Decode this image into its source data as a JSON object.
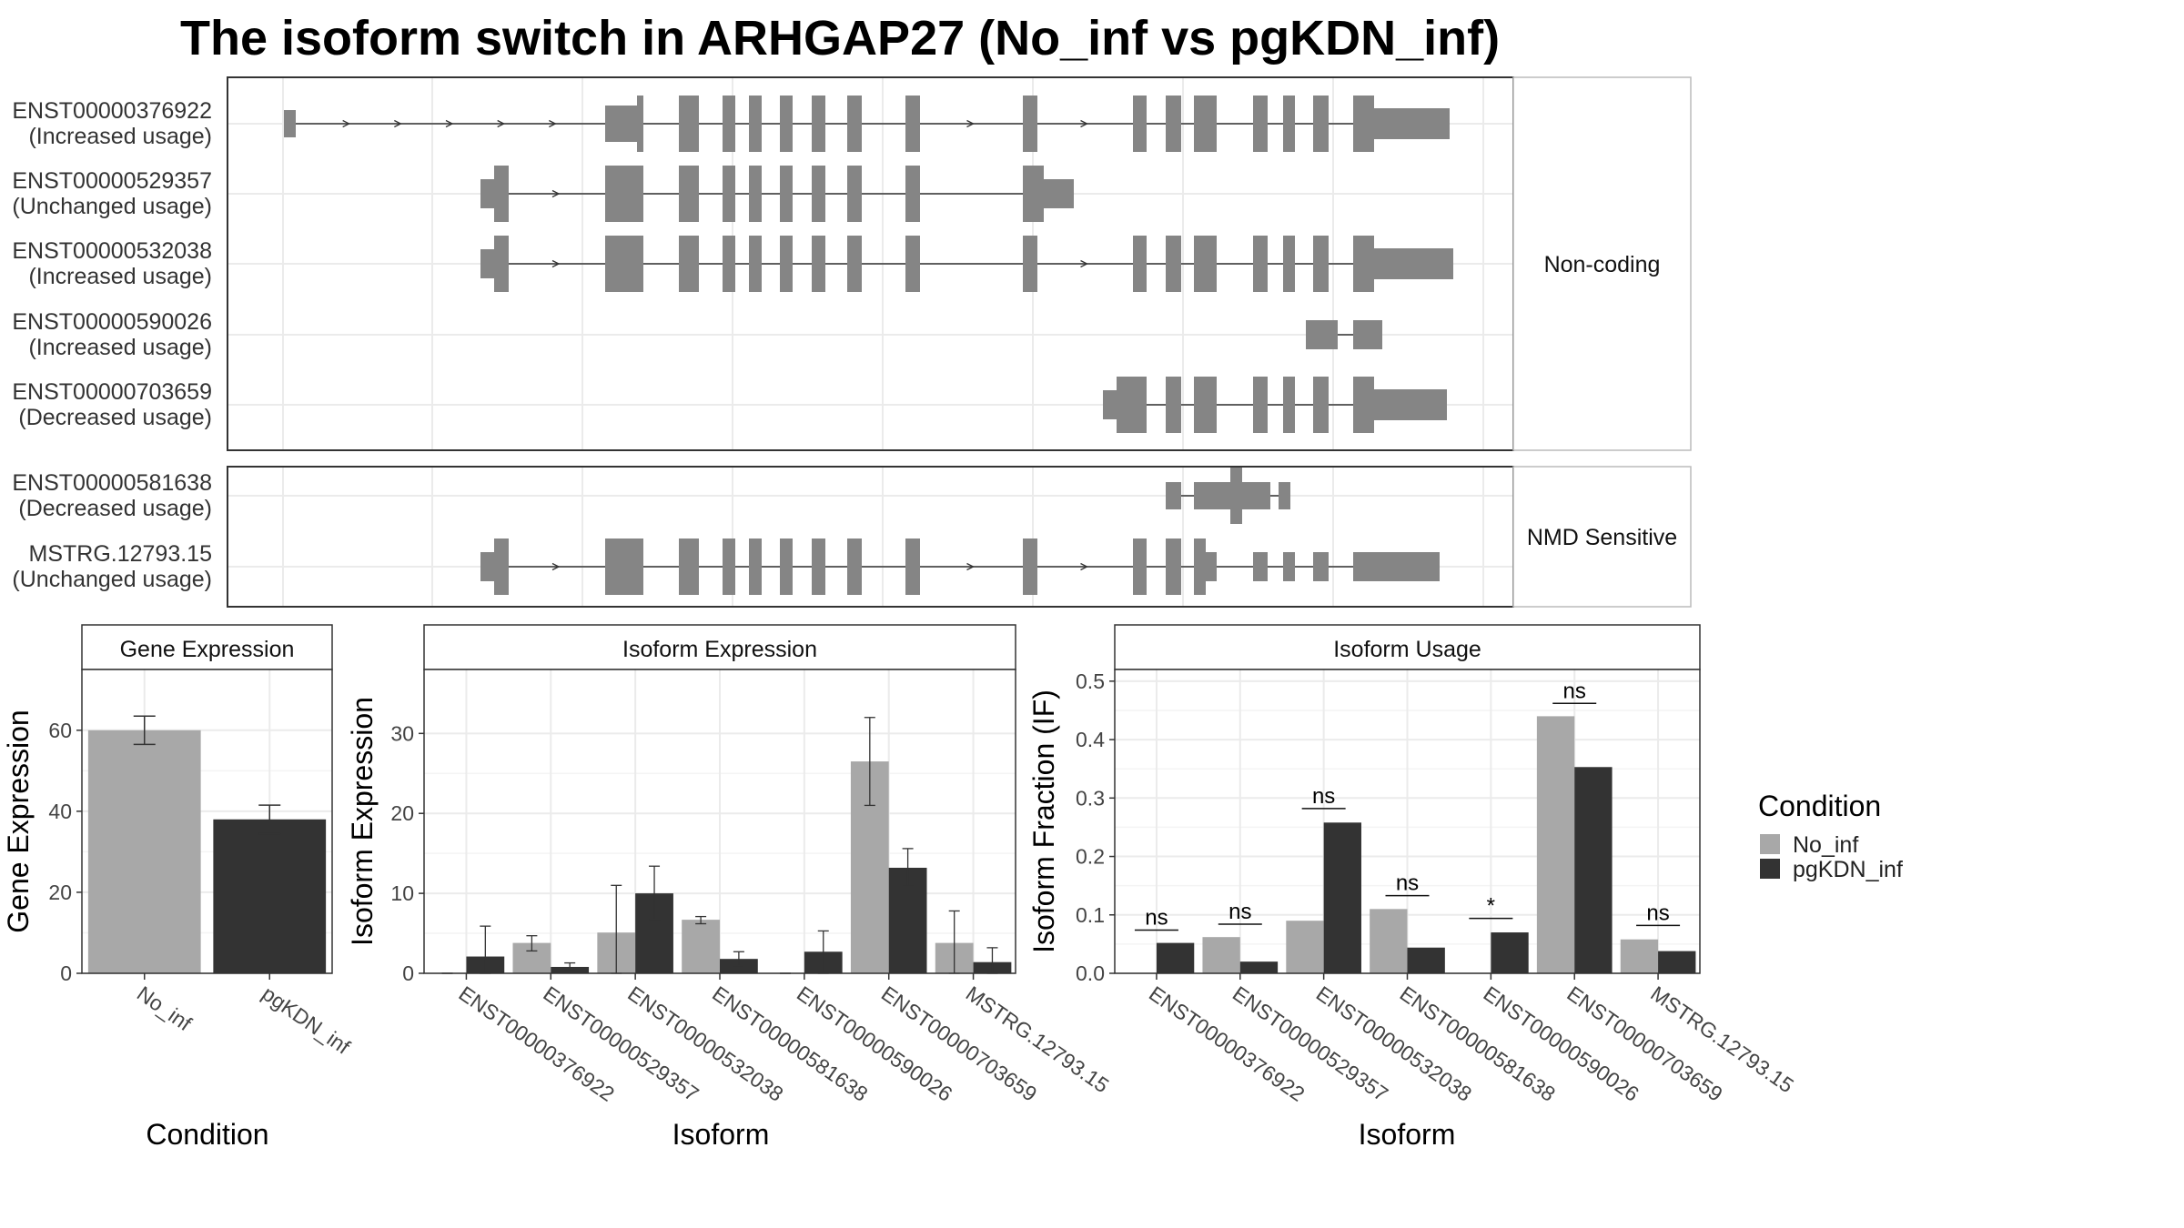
{
  "title": "The isoform switch in ARHGAP27 (No_inf vs pgKDN_inf)",
  "colors": {
    "No_inf": "#a8a8a8",
    "pgKDN_inf": "#333333",
    "exon": "#858585",
    "intron": "#333333"
  },
  "transcripts": {
    "rows": [
      {
        "id": "ENST00000376922",
        "usage": "(Increased usage)",
        "group": "Non-coding"
      },
      {
        "id": "ENST00000529357",
        "usage": "(Unchanged usage)",
        "group": "Non-coding"
      },
      {
        "id": "ENST00000532038",
        "usage": "(Increased usage)",
        "group": "Non-coding"
      },
      {
        "id": "ENST00000590026",
        "usage": "(Increased usage)",
        "group": "Non-coding"
      },
      {
        "id": "ENST00000703659",
        "usage": "(Decreased usage)",
        "group": "Non-coding"
      },
      {
        "id": "ENST00000581638",
        "usage": "(Decreased usage)",
        "group": "NMD Sensitive"
      },
      {
        "id": "MSTRG.12793.15",
        "usage": "(Unchanged usage)",
        "group": "NMD Sensitive"
      }
    ],
    "groups": [
      "Non-coding",
      "NMD Sensitive"
    ]
  },
  "chart_data": [
    {
      "type": "bar",
      "panel": "Gene Expression",
      "xlabel": "Condition",
      "ylabel": "Gene Expression",
      "ylim": [
        0,
        75
      ],
      "yticks": [
        0,
        20,
        40,
        60
      ],
      "categories": [
        "No_inf",
        "pgKDN_inf"
      ],
      "values": [
        60,
        38
      ],
      "error_low": [
        56.5,
        34.5
      ],
      "error_high": [
        63.5,
        41.5
      ]
    },
    {
      "type": "bar",
      "panel": "Isoform Expression",
      "xlabel": "Isoform",
      "ylabel": "Isoform Expression",
      "ylim": [
        0,
        38
      ],
      "yticks": [
        0,
        10,
        20,
        30
      ],
      "categories": [
        "ENST00000376922",
        "ENST00000529357",
        "ENST00000532038",
        "ENST00000581638",
        "ENST00000590026",
        "ENST00000703659",
        "MSTRG.12793.15"
      ],
      "series": [
        {
          "name": "No_inf",
          "values": [
            0,
            3.8,
            5.1,
            6.7,
            0,
            26.5,
            3.8
          ],
          "error_low": [
            0,
            2.8,
            0,
            6.2,
            0,
            21,
            0
          ],
          "error_high": [
            0,
            4.7,
            11,
            7.1,
            0,
            32,
            7.8
          ]
        },
        {
          "name": "pgKDN_inf",
          "values": [
            2.1,
            0.8,
            10,
            1.8,
            2.7,
            13.2,
            1.4
          ],
          "error_low": [
            0,
            0.3,
            6.7,
            0.9,
            0,
            11,
            0
          ],
          "error_high": [
            5.9,
            1.3,
            13.4,
            2.7,
            5.3,
            15.6,
            3.2
          ]
        }
      ]
    },
    {
      "type": "bar",
      "panel": "Isoform Usage",
      "xlabel": "Isoform",
      "ylabel": "Isoform Fraction (IF)",
      "ylim": [
        0,
        0.52
      ],
      "yticks": [
        0.0,
        0.1,
        0.2,
        0.3,
        0.4,
        0.5
      ],
      "categories": [
        "ENST00000376922",
        "ENST00000529357",
        "ENST00000532038",
        "ENST00000581638",
        "ENST00000590026",
        "ENST00000703659",
        "MSTRG.12793.15"
      ],
      "series": [
        {
          "name": "No_inf",
          "values": [
            0,
            0.062,
            0.09,
            0.11,
            0,
            0.44,
            0.058
          ]
        },
        {
          "name": "pgKDN_inf",
          "values": [
            0.052,
            0.02,
            0.258,
            0.044,
            0.07,
            0.353,
            0.038
          ]
        }
      ],
      "significance": [
        "ns",
        "ns",
        "ns",
        "ns",
        "*",
        "ns",
        "ns"
      ],
      "significance_y": [
        0.074,
        0.084,
        0.282,
        0.133,
        0.094,
        0.462,
        0.082
      ]
    }
  ],
  "legend": {
    "title": "Condition",
    "items": [
      "No_inf",
      "pgKDN_inf"
    ]
  }
}
